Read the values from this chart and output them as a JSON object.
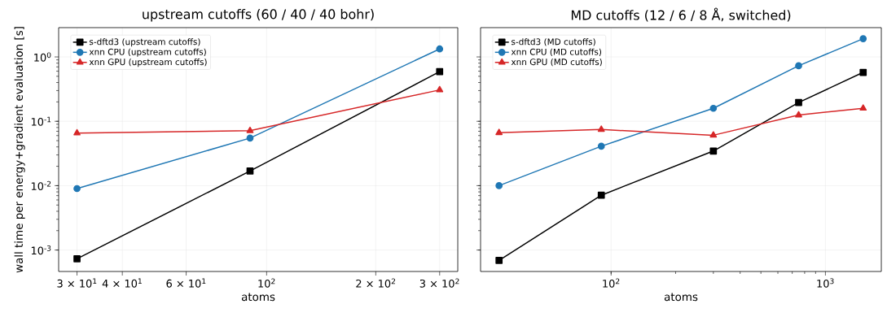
{
  "chart_data": [
    {
      "type": "line",
      "title": "upstream cutoffs (60 / 40 / 40 bohr)",
      "xlabel": "atoms",
      "ylabel": "wall time per energy+gradient evaluation [s]",
      "log": "xy",
      "grid": true,
      "legend": "top left",
      "x": [
        30,
        90,
        300
      ],
      "xlim": [
        26.7,
        336.6
      ],
      "xticks": [
        {
          "value": 30,
          "label": "3 × 10$^{1}$"
        },
        {
          "value": 40,
          "label": "4 × 10$^{1}$"
        },
        {
          "value": 60,
          "label": "6 × 10$^{1}$"
        },
        {
          "value": 100,
          "label": "10$^{2}$"
        },
        {
          "value": 200,
          "label": "2 × 10$^{2}$"
        },
        {
          "value": 300,
          "label": "3 × 10$^{2}$"
        }
      ],
      "ylim": [
        0.000464,
        2.85
      ],
      "yticks": [
        {
          "value": 0.001,
          "label": "10$^{-3}$"
        },
        {
          "value": 0.01,
          "label": "10$^{-2}$"
        },
        {
          "value": 0.1,
          "label": "10$^{-1}$"
        },
        {
          "value": 1,
          "label": "10$^{0}$"
        }
      ],
      "series": [
        {
          "name": "s-dftd3 (upstream cutoffs)",
          "color": "#000000",
          "marker": "square",
          "values": [
            0.00073,
            0.0169,
            0.59
          ]
        },
        {
          "name": "xnn CPU (upstream cutoffs)",
          "color": "#1f77b4",
          "marker": "circle",
          "values": [
            0.009,
            0.0548,
            1.33
          ]
        },
        {
          "name": "xnn GPU (upstream cutoffs)",
          "color": "#d62728",
          "marker": "triangle",
          "values": [
            0.0656,
            0.0713,
            0.307
          ]
        }
      ]
    },
    {
      "type": "line",
      "title": "MD cutoffs (12 / 6 / 8 Å, switched)",
      "xlabel": "atoms",
      "log": "xy",
      "grid": true,
      "legend": "top left",
      "tick_labels": "x",
      "x": [
        30,
        90,
        300,
        750,
        1500
      ],
      "xlim": [
        24.6,
        1823
      ],
      "xticks": [
        {
          "value": 100,
          "label": "10$^{2}$"
        },
        {
          "value": 1000,
          "label": "10$^{3}$"
        }
      ],
      "ylim": [
        0.000464,
        2.85
      ],
      "yticks": [
        {
          "value": 0.001,
          "label": null
        },
        {
          "value": 0.01,
          "label": null
        },
        {
          "value": 0.1,
          "label": null
        },
        {
          "value": 1,
          "label": null
        }
      ],
      "series": [
        {
          "name": "s-dftd3 (MD cutoffs)",
          "color": "#000000",
          "marker": "square",
          "values": [
            0.00069,
            0.0071,
            0.0345,
            0.196,
            0.575
          ]
        },
        {
          "name": "xnn CPU (MD cutoffs)",
          "color": "#1f77b4",
          "marker": "circle",
          "values": [
            0.01,
            0.041,
            0.159,
            0.729,
            1.92
          ]
        },
        {
          "name": "xnn GPU (MD cutoffs)",
          "color": "#d62728",
          "marker": "triangle",
          "values": [
            0.0664,
            0.0745,
            0.0607,
            0.125,
            0.159
          ]
        }
      ]
    }
  ]
}
